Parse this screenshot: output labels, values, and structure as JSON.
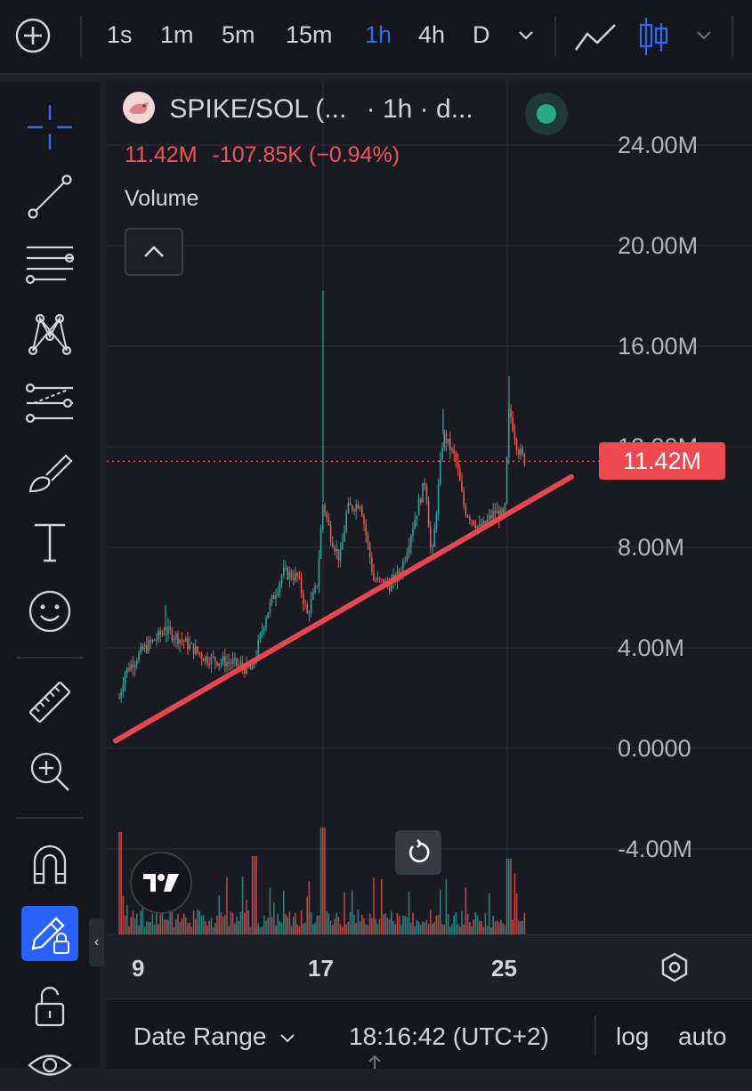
{
  "toolbar": {
    "timeframes": [
      "1s",
      "1m",
      "5m",
      "15m",
      "1h",
      "4h",
      "D"
    ],
    "active_timeframe": "1h",
    "active_color": "#2f6af6"
  },
  "sidebar": {
    "tools": [
      "crosshair-icon",
      "trend-line-icon",
      "fib-retracement-icon",
      "pattern-icon",
      "prediction-icon",
      "brush-icon",
      "text-icon",
      "emoji-icon",
      "ruler-icon",
      "zoom-in-icon",
      "magnet-icon",
      "lock-drawing-icon",
      "unlock-icon",
      "eye-icon"
    ]
  },
  "legend": {
    "symbol": "SPIKE/SOL (...",
    "interval": "· 1h · d...",
    "price": "11.42M",
    "change": "-107.85K (−0.94%)",
    "indicator": "Volume"
  },
  "price_axis": {
    "labels": [
      "24.00M",
      "20.00M",
      "16.00M",
      "12.00M",
      "8.00M",
      "4.00M",
      "0.0000",
      "-4.00M"
    ],
    "current_price_tag": "11.42M",
    "current_price_value": 11.42
  },
  "time_axis": {
    "labels": [
      "9",
      "17",
      "25"
    ]
  },
  "bottom_bar": {
    "date_range": "Date Range",
    "time": "18:16:42 (UTC+2)",
    "log": "log",
    "auto": "auto"
  },
  "colors": {
    "up": "#26a69a",
    "down": "#ef5350",
    "trendline": "#e6474f",
    "background": "#1a1b22"
  },
  "chart_data": {
    "type": "line",
    "ylim": [
      -4000000,
      24000000
    ],
    "x": [
      "9",
      "17",
      "25"
    ],
    "series": [
      {
        "values": [
          2500000,
          11500000,
          11420000
        ]
      }
    ],
    "trendline": {
      "from": 300000,
      "to": 10800000
    }
  }
}
